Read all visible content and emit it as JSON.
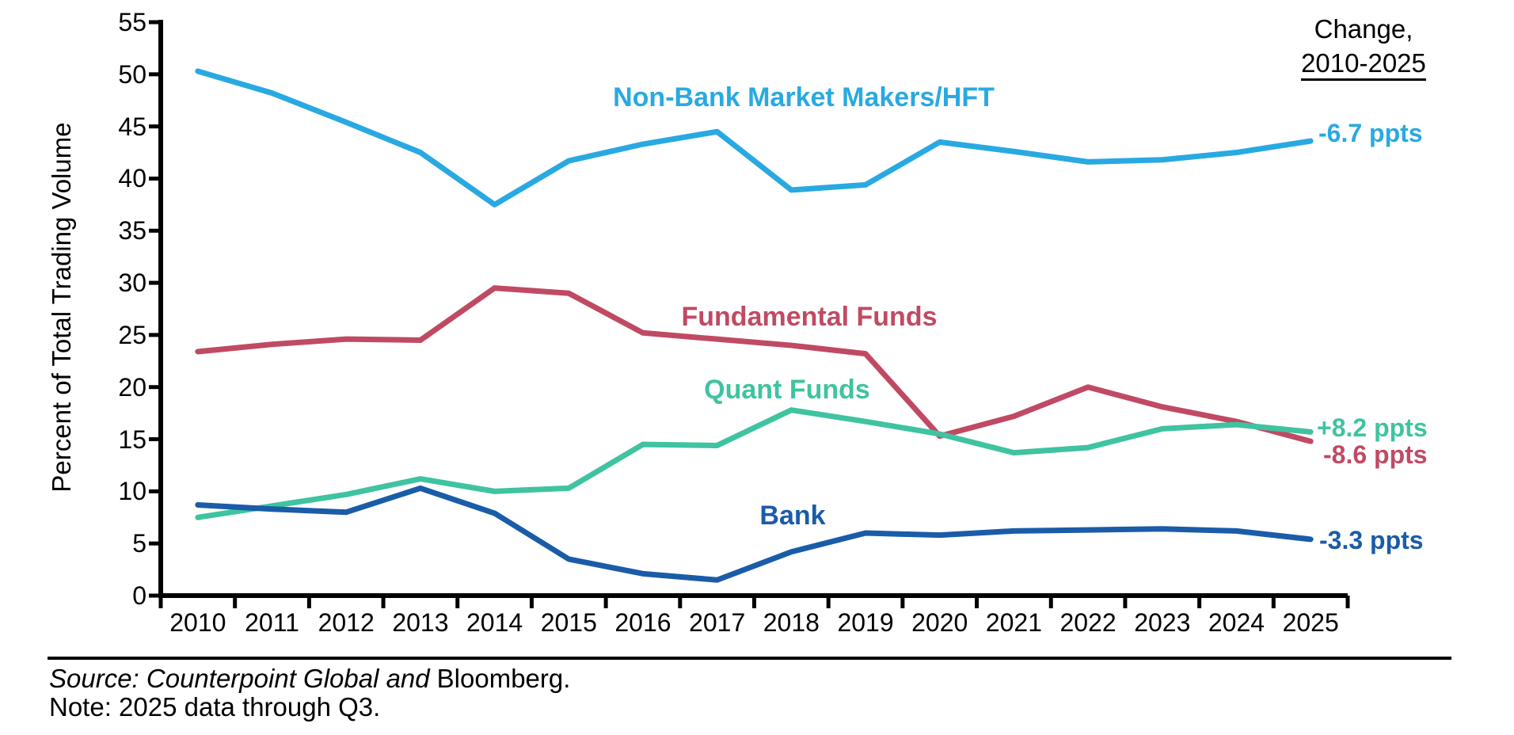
{
  "header": {
    "change_line1": "Change,",
    "change_line2": "2010-2025"
  },
  "chart_data": {
    "type": "line",
    "title": "",
    "xlabel": "",
    "ylabel": "Percent of Total Trading Volume",
    "ylim": [
      0,
      55
    ],
    "yticks": [
      0,
      5,
      10,
      15,
      20,
      25,
      30,
      35,
      40,
      45,
      50,
      55
    ],
    "categories": [
      "2010",
      "2011",
      "2012",
      "2013",
      "2014",
      "2015",
      "2016",
      "2017",
      "2018",
      "2019",
      "2020",
      "2021",
      "2022",
      "2023",
      "2024",
      "2025"
    ],
    "grid": false,
    "legend_position": "inline-labels",
    "axis_color": "#000000",
    "series": [
      {
        "name": "Non-Bank Market Makers/HFT",
        "color": "#29A9E1",
        "change_label": "-6.7 ppts",
        "values": [
          50.3,
          48.2,
          45.4,
          42.5,
          37.5,
          41.7,
          43.3,
          44.5,
          38.9,
          39.4,
          43.5,
          42.6,
          41.6,
          41.8,
          42.5,
          43.6
        ]
      },
      {
        "name": "Fundamental Funds",
        "color": "#C04A63",
        "change_label": "-8.6 ppts",
        "values": [
          23.4,
          24.1,
          24.6,
          24.5,
          29.5,
          29.0,
          25.2,
          24.6,
          24.0,
          23.2,
          15.3,
          17.2,
          20.0,
          18.1,
          16.7,
          14.8
        ]
      },
      {
        "name": "Quant Funds",
        "color": "#3FC3A0",
        "change_label": "+8.2 ppts",
        "values": [
          7.5,
          8.6,
          9.7,
          11.2,
          10.0,
          10.3,
          14.5,
          14.4,
          17.8,
          16.7,
          15.5,
          13.7,
          14.2,
          16.0,
          16.4,
          15.7
        ]
      },
      {
        "name": "Bank",
        "color": "#1A5CA8",
        "change_label": "-3.3 ppts",
        "values": [
          8.7,
          8.3,
          8.0,
          10.3,
          7.9,
          3.5,
          2.1,
          1.5,
          4.2,
          6.0,
          5.8,
          6.2,
          6.3,
          6.4,
          6.2,
          5.4
        ]
      }
    ]
  },
  "footer": {
    "source_prefix_italic": "Source: Counterpoint Global and",
    "source_suffix": "Bloomberg.",
    "note": "Note: 2025 data through Q3."
  }
}
